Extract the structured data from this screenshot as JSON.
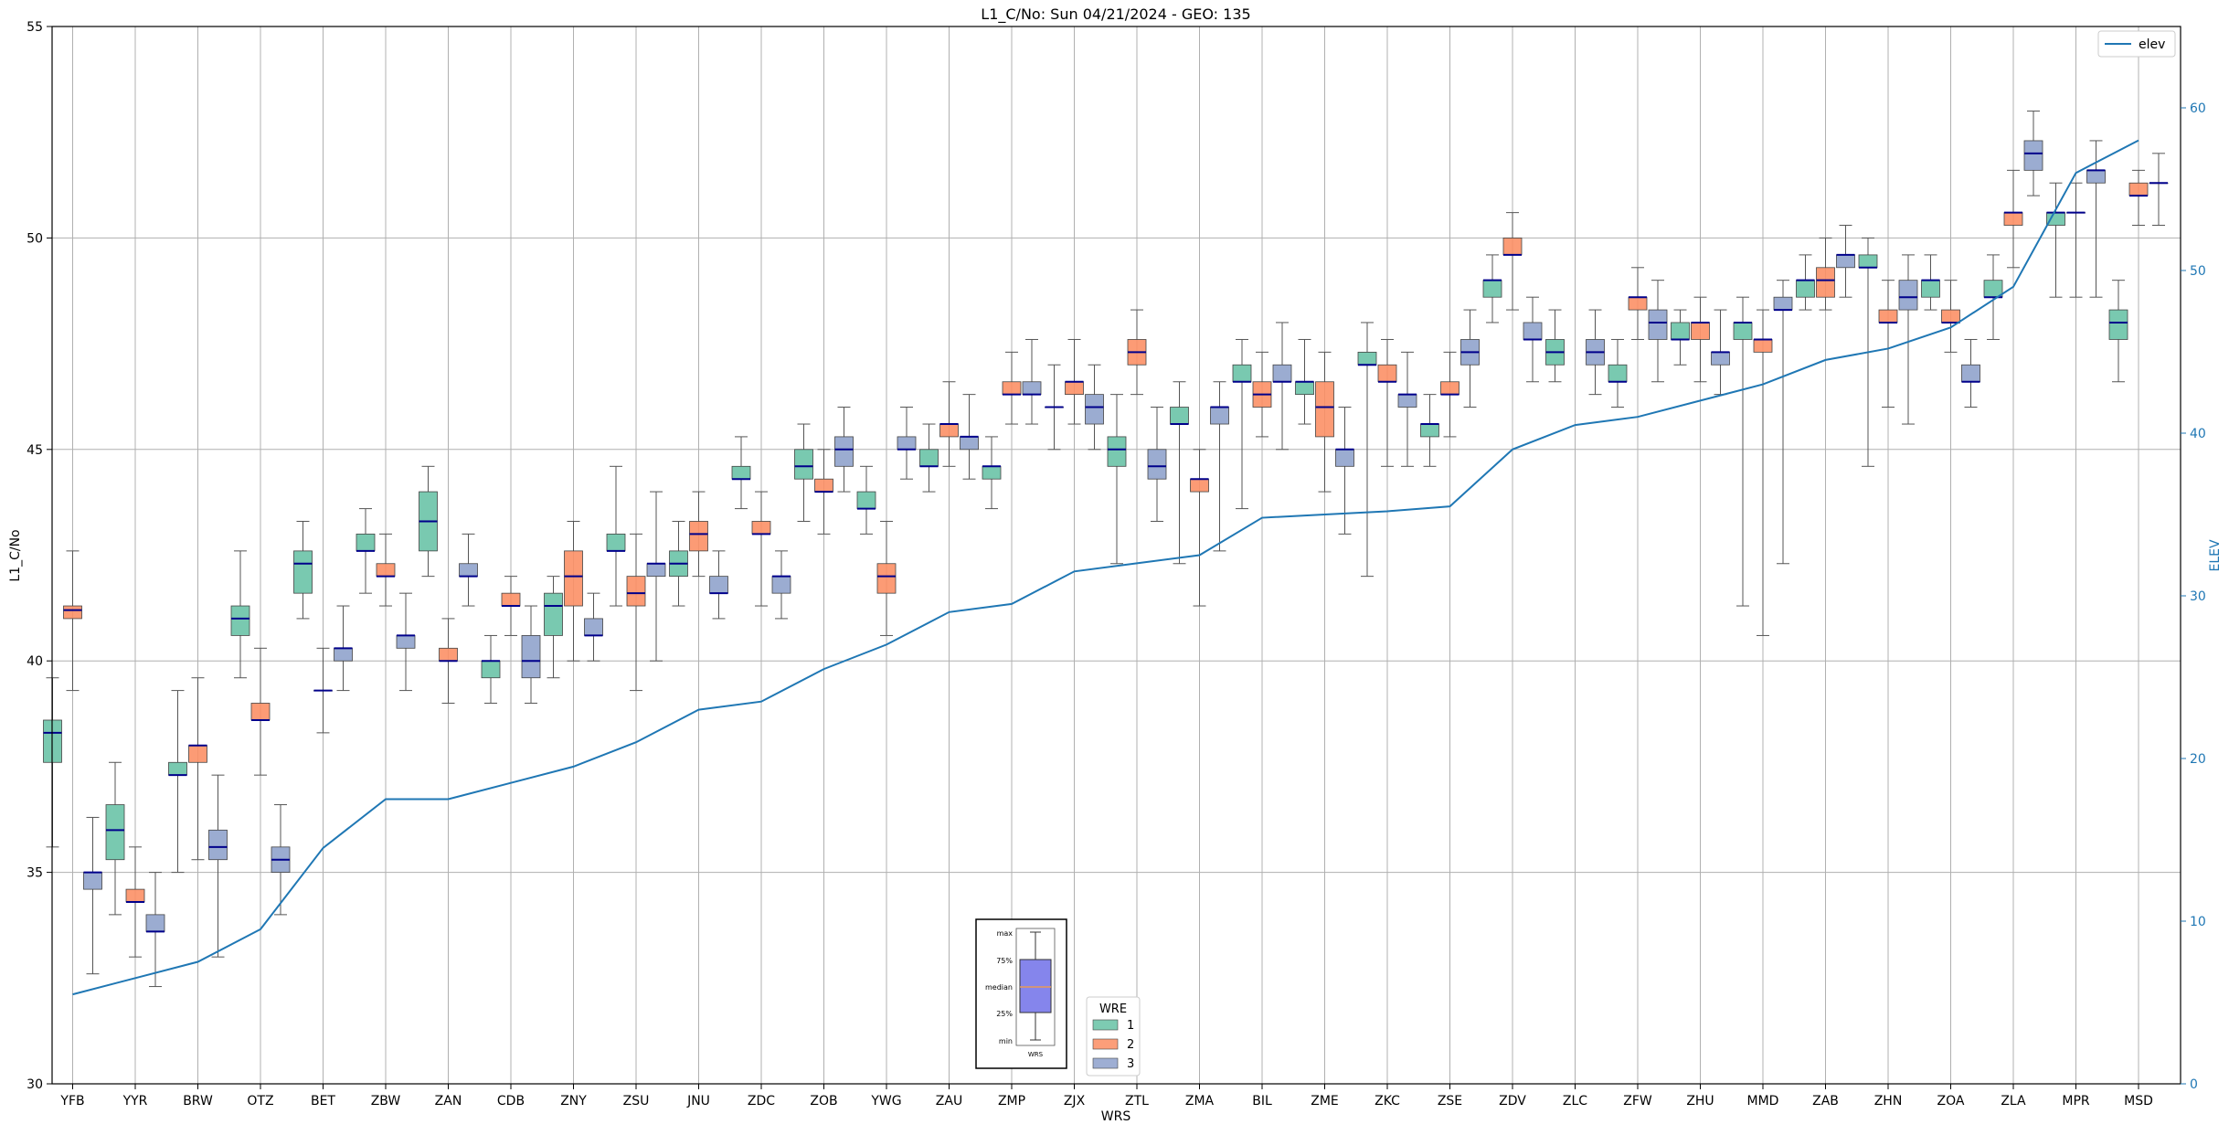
{
  "chart_data": {
    "type": "box",
    "title": "L1_C/No: Sun 04/21/2024 - GEO: 135",
    "xlabel": "WRS",
    "ylabel": "L1_C/No",
    "y2label": "ELEV",
    "ylim": [
      30,
      55
    ],
    "y2lim": [
      0,
      65
    ],
    "yticks": [
      "30",
      "35",
      "40",
      "45",
      "50",
      "55"
    ],
    "y2ticks": [
      "0",
      "10",
      "20",
      "30",
      "40",
      "50",
      "60"
    ],
    "grid": true,
    "categories": [
      "YFB",
      "YYR",
      "BRW",
      "OTZ",
      "BET",
      "ZBW",
      "ZAN",
      "CDB",
      "ZNY",
      "ZSU",
      "JNU",
      "ZDC",
      "ZOB",
      "YWG",
      "ZAU",
      "ZMP",
      "ZJX",
      "ZTL",
      "ZMA",
      "BIL",
      "ZME",
      "ZKC",
      "ZSE",
      "ZDV",
      "ZLC",
      "ZFW",
      "ZHU",
      "MMD",
      "ZAB",
      "ZHN",
      "ZOA",
      "ZLA",
      "MPR",
      "MSD"
    ],
    "colors": {
      "1": "#66c2a5",
      "2": "#fc8d62",
      "3": "#8da0cb",
      "median": "#00008b",
      "elev": "#1f77b4"
    },
    "legend_wre": {
      "title": "WRE",
      "entries": [
        "1",
        "2",
        "3"
      ],
      "position": "bottom-center"
    },
    "legend_elev": {
      "entries": [
        "elev"
      ],
      "position": "top-right"
    },
    "key_inset": {
      "labels": [
        "max",
        "75%",
        "median",
        "25%",
        "min"
      ],
      "xlabel": "WRS"
    },
    "elev": [
      5.5,
      6.5,
      7.5,
      9.5,
      14.5,
      17.5,
      17.5,
      18.5,
      19.5,
      21.0,
      23.0,
      23.5,
      25.5,
      27.0,
      29.0,
      29.5,
      31.5,
      32.0,
      32.5,
      34.8,
      35.0,
      35.2,
      35.5,
      39.0,
      40.5,
      41.0,
      42.0,
      43.0,
      44.5,
      45.2,
      46.5,
      49.0,
      56.0,
      58.0
    ],
    "boxes": [
      {
        "wrs": "YFB",
        "wre": "1",
        "min": 35.6,
        "q1": 37.6,
        "median": 38.3,
        "q3": 38.6,
        "max": 39.6
      },
      {
        "wrs": "YFB",
        "wre": "2",
        "min": 39.3,
        "q1": 41.0,
        "median": 41.2,
        "q3": 41.3,
        "max": 42.6
      },
      {
        "wrs": "YFB",
        "wre": "3",
        "min": 32.6,
        "q1": 34.6,
        "median": 35.0,
        "q3": 35.0,
        "max": 36.3
      },
      {
        "wrs": "YYR",
        "wre": "1",
        "min": 34.0,
        "q1": 35.3,
        "median": 36.0,
        "q3": 36.6,
        "max": 37.6
      },
      {
        "wrs": "YYR",
        "wre": "2",
        "min": 33.0,
        "q1": 34.3,
        "median": 34.3,
        "q3": 34.6,
        "max": 35.6
      },
      {
        "wrs": "YYR",
        "wre": "3",
        "min": 32.3,
        "q1": 33.6,
        "median": 33.6,
        "q3": 34.0,
        "max": 35.0
      },
      {
        "wrs": "BRW",
        "wre": "1",
        "min": 35.0,
        "q1": 37.3,
        "median": 37.3,
        "q3": 37.6,
        "max": 39.3
      },
      {
        "wrs": "BRW",
        "wre": "2",
        "min": 35.3,
        "q1": 37.6,
        "median": 38.0,
        "q3": 38.0,
        "max": 39.6
      },
      {
        "wrs": "BRW",
        "wre": "3",
        "min": 33.0,
        "q1": 35.3,
        "median": 35.6,
        "q3": 36.0,
        "max": 37.3
      },
      {
        "wrs": "OTZ",
        "wre": "1",
        "min": 39.6,
        "q1": 40.6,
        "median": 41.0,
        "q3": 41.3,
        "max": 42.6
      },
      {
        "wrs": "OTZ",
        "wre": "2",
        "min": 37.3,
        "q1": 38.6,
        "median": 38.6,
        "q3": 39.0,
        "max": 40.3
      },
      {
        "wrs": "OTZ",
        "wre": "3",
        "min": 34.0,
        "q1": 35.0,
        "median": 35.3,
        "q3": 35.6,
        "max": 36.6
      },
      {
        "wrs": "BET",
        "wre": "1",
        "min": 41.0,
        "q1": 41.6,
        "median": 42.3,
        "q3": 42.6,
        "max": 43.3
      },
      {
        "wrs": "BET",
        "wre": "2",
        "min": 38.3,
        "q1": 39.3,
        "median": 39.3,
        "q3": 39.3,
        "max": 40.3
      },
      {
        "wrs": "BET",
        "wre": "3",
        "min": 39.3,
        "q1": 40.0,
        "median": 40.3,
        "q3": 40.3,
        "max": 41.3
      },
      {
        "wrs": "ZBW",
        "wre": "1",
        "min": 41.6,
        "q1": 42.6,
        "median": 42.6,
        "q3": 43.0,
        "max": 43.6
      },
      {
        "wrs": "ZBW",
        "wre": "2",
        "min": 41.3,
        "q1": 42.0,
        "median": 42.0,
        "q3": 42.3,
        "max": 43.0
      },
      {
        "wrs": "ZBW",
        "wre": "3",
        "min": 39.3,
        "q1": 40.3,
        "median": 40.6,
        "q3": 40.6,
        "max": 41.6
      },
      {
        "wrs": "ZAN",
        "wre": "1",
        "min": 42.0,
        "q1": 42.6,
        "median": 43.3,
        "q3": 44.0,
        "max": 44.6
      },
      {
        "wrs": "ZAN",
        "wre": "2",
        "min": 39.0,
        "q1": 40.0,
        "median": 40.0,
        "q3": 40.3,
        "max": 41.0
      },
      {
        "wrs": "ZAN",
        "wre": "3",
        "min": 41.3,
        "q1": 42.0,
        "median": 42.0,
        "q3": 42.3,
        "max": 43.0
      },
      {
        "wrs": "CDB",
        "wre": "1",
        "min": 39.0,
        "q1": 39.6,
        "median": 40.0,
        "q3": 40.0,
        "max": 40.6
      },
      {
        "wrs": "CDB",
        "wre": "2",
        "min": 40.6,
        "q1": 41.3,
        "median": 41.3,
        "q3": 41.6,
        "max": 42.0
      },
      {
        "wrs": "CDB",
        "wre": "3",
        "min": 39.0,
        "q1": 39.6,
        "median": 40.0,
        "q3": 40.6,
        "max": 41.3
      },
      {
        "wrs": "ZNY",
        "wre": "1",
        "min": 39.6,
        "q1": 40.6,
        "median": 41.3,
        "q3": 41.6,
        "max": 42.0
      },
      {
        "wrs": "ZNY",
        "wre": "2",
        "min": 40.0,
        "q1": 41.3,
        "median": 42.0,
        "q3": 42.6,
        "max": 43.3
      },
      {
        "wrs": "ZNY",
        "wre": "3",
        "min": 40.0,
        "q1": 40.6,
        "median": 40.6,
        "q3": 41.0,
        "max": 41.6
      },
      {
        "wrs": "ZSU",
        "wre": "1",
        "min": 41.3,
        "q1": 42.6,
        "median": 42.6,
        "q3": 43.0,
        "max": 44.6
      },
      {
        "wrs": "ZSU",
        "wre": "2",
        "min": 39.3,
        "q1": 41.3,
        "median": 41.6,
        "q3": 42.0,
        "max": 43.0
      },
      {
        "wrs": "ZSU",
        "wre": "3",
        "min": 40.0,
        "q1": 42.0,
        "median": 42.3,
        "q3": 42.3,
        "max": 44.0
      },
      {
        "wrs": "JNU",
        "wre": "1",
        "min": 41.3,
        "q1": 42.0,
        "median": 42.3,
        "q3": 42.6,
        "max": 43.3
      },
      {
        "wrs": "JNU",
        "wre": "2",
        "min": 42.0,
        "q1": 42.6,
        "median": 43.0,
        "q3": 43.3,
        "max": 44.0
      },
      {
        "wrs": "JNU",
        "wre": "3",
        "min": 41.0,
        "q1": 41.6,
        "median": 41.6,
        "q3": 42.0,
        "max": 42.6
      },
      {
        "wrs": "ZDC",
        "wre": "1",
        "min": 43.6,
        "q1": 44.3,
        "median": 44.3,
        "q3": 44.6,
        "max": 45.3
      },
      {
        "wrs": "ZDC",
        "wre": "2",
        "min": 41.3,
        "q1": 43.0,
        "median": 43.0,
        "q3": 43.3,
        "max": 44.0
      },
      {
        "wrs": "ZDC",
        "wre": "3",
        "min": 41.0,
        "q1": 41.6,
        "median": 42.0,
        "q3": 42.0,
        "max": 42.6
      },
      {
        "wrs": "ZOB",
        "wre": "1",
        "min": 43.3,
        "q1": 44.3,
        "median": 44.6,
        "q3": 45.0,
        "max": 45.6
      },
      {
        "wrs": "ZOB",
        "wre": "2",
        "min": 43.0,
        "q1": 44.0,
        "median": 44.0,
        "q3": 44.3,
        "max": 45.0
      },
      {
        "wrs": "ZOB",
        "wre": "3",
        "min": 44.0,
        "q1": 44.6,
        "median": 45.0,
        "q3": 45.3,
        "max": 46.0
      },
      {
        "wrs": "YWG",
        "wre": "1",
        "min": 43.0,
        "q1": 43.6,
        "median": 43.6,
        "q3": 44.0,
        "max": 44.6
      },
      {
        "wrs": "YWG",
        "wre": "2",
        "min": 40.6,
        "q1": 41.6,
        "median": 42.0,
        "q3": 42.3,
        "max": 43.3
      },
      {
        "wrs": "YWG",
        "wre": "3",
        "min": 44.3,
        "q1": 45.0,
        "median": 45.0,
        "q3": 45.3,
        "max": 46.0
      },
      {
        "wrs": "ZAU",
        "wre": "1",
        "min": 44.0,
        "q1": 44.6,
        "median": 44.6,
        "q3": 45.0,
        "max": 45.6
      },
      {
        "wrs": "ZAU",
        "wre": "2",
        "min": 44.6,
        "q1": 45.3,
        "median": 45.6,
        "q3": 45.6,
        "max": 46.6
      },
      {
        "wrs": "ZAU",
        "wre": "3",
        "min": 44.3,
        "q1": 45.0,
        "median": 45.3,
        "q3": 45.3,
        "max": 46.3
      },
      {
        "wrs": "ZMP",
        "wre": "1",
        "min": 43.6,
        "q1": 44.3,
        "median": 44.6,
        "q3": 44.6,
        "max": 45.3
      },
      {
        "wrs": "ZMP",
        "wre": "2",
        "min": 45.6,
        "q1": 46.3,
        "median": 46.3,
        "q3": 46.6,
        "max": 47.3
      },
      {
        "wrs": "ZMP",
        "wre": "3",
        "min": 45.6,
        "q1": 46.3,
        "median": 46.3,
        "q3": 46.6,
        "max": 47.6
      },
      {
        "wrs": "ZJX",
        "wre": "1",
        "min": 45.0,
        "q1": 46.0,
        "median": 46.0,
        "q3": 46.0,
        "max": 47.0
      },
      {
        "wrs": "ZJX",
        "wre": "2",
        "min": 45.6,
        "q1": 46.3,
        "median": 46.6,
        "q3": 46.6,
        "max": 47.6
      },
      {
        "wrs": "ZJX",
        "wre": "3",
        "min": 45.0,
        "q1": 45.6,
        "median": 46.0,
        "q3": 46.3,
        "max": 47.0
      },
      {
        "wrs": "ZTL",
        "wre": "1",
        "min": 42.3,
        "q1": 44.6,
        "median": 45.0,
        "q3": 45.3,
        "max": 46.3
      },
      {
        "wrs": "ZTL",
        "wre": "2",
        "min": 46.3,
        "q1": 47.0,
        "median": 47.3,
        "q3": 47.6,
        "max": 48.3
      },
      {
        "wrs": "ZTL",
        "wre": "3",
        "min": 43.3,
        "q1": 44.3,
        "median": 44.6,
        "q3": 45.0,
        "max": 46.0
      },
      {
        "wrs": "ZMA",
        "wre": "1",
        "min": 42.3,
        "q1": 45.6,
        "median": 45.6,
        "q3": 46.0,
        "max": 46.6
      },
      {
        "wrs": "ZMA",
        "wre": "2",
        "min": 41.3,
        "q1": 44.0,
        "median": 44.3,
        "q3": 44.3,
        "max": 45.0
      },
      {
        "wrs": "ZMA",
        "wre": "3",
        "min": 42.6,
        "q1": 45.6,
        "median": 46.0,
        "q3": 46.0,
        "max": 46.6
      },
      {
        "wrs": "BIL",
        "wre": "1",
        "min": 43.6,
        "q1": 46.6,
        "median": 46.6,
        "q3": 47.0,
        "max": 47.6
      },
      {
        "wrs": "BIL",
        "wre": "2",
        "min": 45.3,
        "q1": 46.0,
        "median": 46.3,
        "q3": 46.6,
        "max": 47.3
      },
      {
        "wrs": "BIL",
        "wre": "3",
        "min": 45.0,
        "q1": 46.6,
        "median": 46.6,
        "q3": 47.0,
        "max": 48.0
      },
      {
        "wrs": "ZME",
        "wre": "1",
        "min": 45.6,
        "q1": 46.3,
        "median": 46.6,
        "q3": 46.6,
        "max": 47.6
      },
      {
        "wrs": "ZME",
        "wre": "2",
        "min": 44.0,
        "q1": 45.3,
        "median": 46.0,
        "q3": 46.6,
        "max": 47.3
      },
      {
        "wrs": "ZME",
        "wre": "3",
        "min": 43.0,
        "q1": 44.6,
        "median": 45.0,
        "q3": 45.0,
        "max": 46.0
      },
      {
        "wrs": "ZKC",
        "wre": "1",
        "min": 42.0,
        "q1": 47.0,
        "median": 47.0,
        "q3": 47.3,
        "max": 48.0
      },
      {
        "wrs": "ZKC",
        "wre": "2",
        "min": 44.6,
        "q1": 46.6,
        "median": 46.6,
        "q3": 47.0,
        "max": 47.6
      },
      {
        "wrs": "ZKC",
        "wre": "3",
        "min": 44.6,
        "q1": 46.0,
        "median": 46.3,
        "q3": 46.3,
        "max": 47.3
      },
      {
        "wrs": "ZSE",
        "wre": "1",
        "min": 44.6,
        "q1": 45.3,
        "median": 45.6,
        "q3": 45.6,
        "max": 46.3
      },
      {
        "wrs": "ZSE",
        "wre": "2",
        "min": 45.3,
        "q1": 46.3,
        "median": 46.3,
        "q3": 46.6,
        "max": 47.3
      },
      {
        "wrs": "ZSE",
        "wre": "3",
        "min": 46.0,
        "q1": 47.0,
        "median": 47.3,
        "q3": 47.6,
        "max": 48.3
      },
      {
        "wrs": "ZDV",
        "wre": "1",
        "min": 48.0,
        "q1": 48.6,
        "median": 49.0,
        "q3": 49.0,
        "max": 49.6
      },
      {
        "wrs": "ZDV",
        "wre": "2",
        "min": 48.3,
        "q1": 49.6,
        "median": 49.6,
        "q3": 50.0,
        "max": 50.6
      },
      {
        "wrs": "ZDV",
        "wre": "3",
        "min": 46.6,
        "q1": 47.6,
        "median": 47.6,
        "q3": 48.0,
        "max": 48.6
      },
      {
        "wrs": "ZLC",
        "wre": "1",
        "min": 46.6,
        "q1": 47.0,
        "median": 47.3,
        "q3": 47.6,
        "max": 48.3
      },
      {
        "wrs": "ZLC",
        "wre": "2",
        "min": 0,
        "q1": 0,
        "median": 0,
        "q3": 0,
        "max": 0,
        "absent": true
      },
      {
        "wrs": "ZLC",
        "wre": "3",
        "min": 46.3,
        "q1": 47.0,
        "median": 47.3,
        "q3": 47.6,
        "max": 48.3
      },
      {
        "wrs": "ZFW",
        "wre": "1",
        "min": 46.0,
        "q1": 46.6,
        "median": 46.6,
        "q3": 47.0,
        "max": 47.6
      },
      {
        "wrs": "ZFW",
        "wre": "2",
        "min": 47.6,
        "q1": 48.3,
        "median": 48.6,
        "q3": 48.6,
        "max": 49.3
      },
      {
        "wrs": "ZFW",
        "wre": "3",
        "min": 46.6,
        "q1": 47.6,
        "median": 48.0,
        "q3": 48.3,
        "max": 49.0
      },
      {
        "wrs": "ZHU",
        "wre": "1",
        "min": 47.0,
        "q1": 47.6,
        "median": 47.6,
        "q3": 48.0,
        "max": 48.3
      },
      {
        "wrs": "ZHU",
        "wre": "2",
        "min": 46.6,
        "q1": 47.6,
        "median": 48.0,
        "q3": 48.0,
        "max": 48.6
      },
      {
        "wrs": "ZHU",
        "wre": "3",
        "min": 46.3,
        "q1": 47.0,
        "median": 47.3,
        "q3": 47.3,
        "max": 48.3
      },
      {
        "wrs": "MMD",
        "wre": "1",
        "min": 41.3,
        "q1": 47.6,
        "median": 48.0,
        "q3": 48.0,
        "max": 48.6
      },
      {
        "wrs": "MMD",
        "wre": "2",
        "min": 40.6,
        "q1": 47.3,
        "median": 47.6,
        "q3": 47.6,
        "max": 48.3
      },
      {
        "wrs": "MMD",
        "wre": "3",
        "min": 42.3,
        "q1": 48.3,
        "median": 48.3,
        "q3": 48.6,
        "max": 49.0
      },
      {
        "wrs": "ZAB",
        "wre": "1",
        "min": 48.3,
        "q1": 48.6,
        "median": 49.0,
        "q3": 49.0,
        "max": 49.6
      },
      {
        "wrs": "ZAB",
        "wre": "2",
        "min": 48.3,
        "q1": 48.6,
        "median": 49.0,
        "q3": 49.3,
        "max": 50.0
      },
      {
        "wrs": "ZAB",
        "wre": "3",
        "min": 48.6,
        "q1": 49.3,
        "median": 49.6,
        "q3": 49.6,
        "max": 50.3
      },
      {
        "wrs": "ZHN",
        "wre": "1",
        "min": 44.6,
        "q1": 49.3,
        "median": 49.3,
        "q3": 49.6,
        "max": 50.0
      },
      {
        "wrs": "ZHN",
        "wre": "2",
        "min": 46.0,
        "q1": 48.0,
        "median": 48.0,
        "q3": 48.3,
        "max": 49.0
      },
      {
        "wrs": "ZHN",
        "wre": "3",
        "min": 45.6,
        "q1": 48.3,
        "median": 48.6,
        "q3": 49.0,
        "max": 49.6
      },
      {
        "wrs": "ZOA",
        "wre": "1",
        "min": 48.3,
        "q1": 48.6,
        "median": 49.0,
        "q3": 49.0,
        "max": 49.6
      },
      {
        "wrs": "ZOA",
        "wre": "2",
        "min": 47.3,
        "q1": 48.0,
        "median": 48.0,
        "q3": 48.3,
        "max": 49.0
      },
      {
        "wrs": "ZOA",
        "wre": "3",
        "min": 46.0,
        "q1": 46.6,
        "median": 46.6,
        "q3": 47.0,
        "max": 47.6
      },
      {
        "wrs": "ZLA",
        "wre": "1",
        "min": 47.6,
        "q1": 48.6,
        "median": 48.6,
        "q3": 49.0,
        "max": 49.6
      },
      {
        "wrs": "ZLA",
        "wre": "2",
        "min": 49.3,
        "q1": 50.3,
        "median": 50.6,
        "q3": 50.6,
        "max": 51.6
      },
      {
        "wrs": "ZLA",
        "wre": "3",
        "min": 51.0,
        "q1": 51.6,
        "median": 52.0,
        "q3": 52.3,
        "max": 53.0
      },
      {
        "wrs": "MPR",
        "wre": "1",
        "min": 48.6,
        "q1": 50.3,
        "median": 50.6,
        "q3": 50.6,
        "max": 51.3
      },
      {
        "wrs": "MPR",
        "wre": "2",
        "min": 48.6,
        "q1": 50.6,
        "median": 50.6,
        "q3": 50.6,
        "max": 51.3
      },
      {
        "wrs": "MPR",
        "wre": "3",
        "min": 48.6,
        "q1": 51.3,
        "median": 51.6,
        "q3": 51.6,
        "max": 52.3
      },
      {
        "wrs": "MSD",
        "wre": "1",
        "min": 46.6,
        "q1": 47.6,
        "median": 48.0,
        "q3": 48.3,
        "max": 49.0
      },
      {
        "wrs": "MSD",
        "wre": "2",
        "min": 50.3,
        "q1": 51.0,
        "median": 51.0,
        "q3": 51.3,
        "max": 51.6
      },
      {
        "wrs": "MSD",
        "wre": "3",
        "min": 50.3,
        "q1": 51.3,
        "median": 51.3,
        "q3": 51.3,
        "max": 52.0
      }
    ]
  }
}
